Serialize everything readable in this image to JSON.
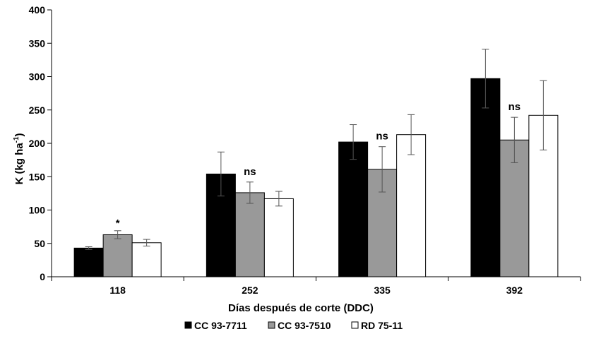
{
  "chart_data": {
    "type": "bar",
    "xlabel": "Días después de corte (DDC)",
    "ylabel": "K (kg ha",
    "ylabel_sup": "-1",
    "ylabel_end": ")",
    "ylim": [
      0,
      400
    ],
    "yticks": [
      "0",
      "50",
      "100",
      "150",
      "200",
      "250",
      "300",
      "350",
      "400"
    ],
    "categories": [
      "118",
      "252",
      "335",
      "392"
    ],
    "series": [
      {
        "name": "CC 93-7711",
        "color": "#000000",
        "values": [
          43,
          154,
          202,
          297
        ],
        "errors": [
          2,
          33,
          26,
          44
        ]
      },
      {
        "name": "CC 93-7510",
        "color": "#999999",
        "values": [
          63,
          126,
          161,
          205
        ],
        "errors": [
          6,
          16,
          34,
          34
        ]
      },
      {
        "name": "RD 75-11",
        "color": "#ffffff",
        "values": [
          51,
          117,
          213,
          242
        ],
        "errors": [
          5,
          11,
          30,
          52
        ]
      }
    ],
    "significance": [
      "*",
      "ns",
      "ns",
      "ns"
    ],
    "grid": false,
    "legend": "bottom"
  }
}
